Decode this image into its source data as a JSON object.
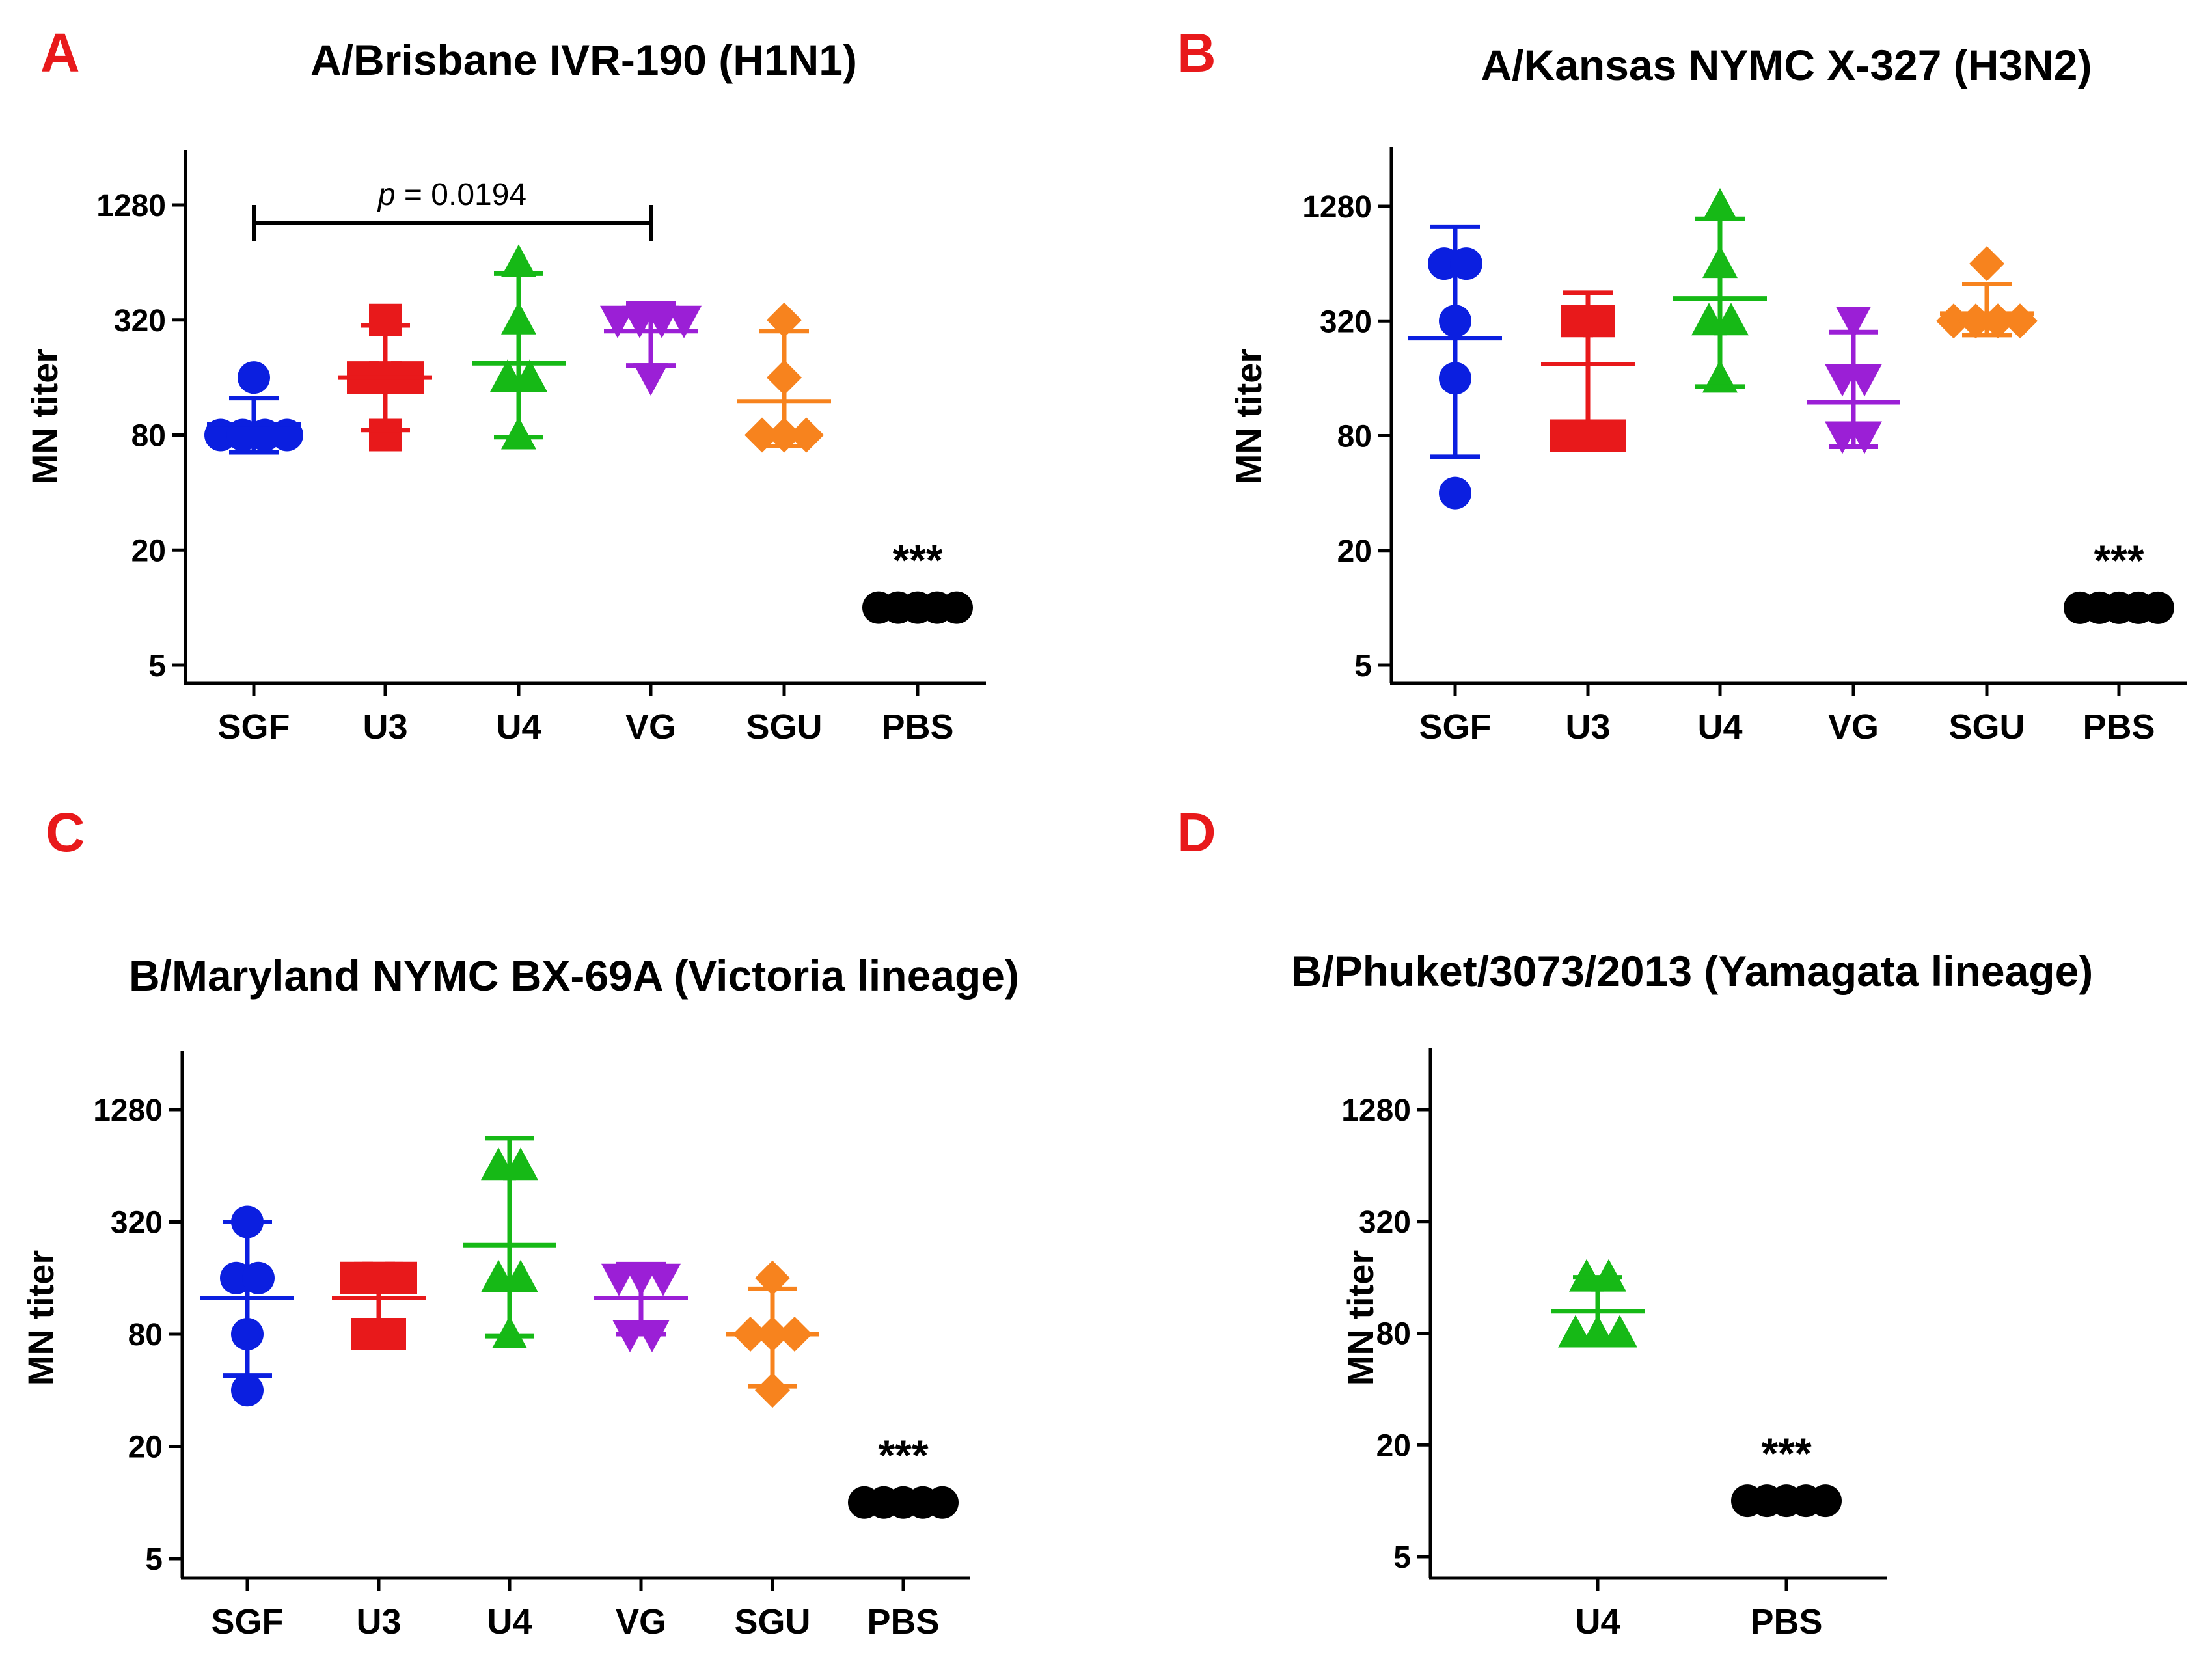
{
  "figure": {
    "name": "MN titer figure"
  },
  "chart_data": [
    {
      "panel": "A",
      "type": "scatter",
      "title": "A/Brisbane IVR-190 (H1N1)",
      "xlabel": "",
      "ylabel": "MN titer",
      "yscale": "log2",
      "ylim": [
        4,
        2560
      ],
      "yticks": [
        5,
        20,
        80,
        320,
        1280
      ],
      "categories": [
        "SGF",
        "U3",
        "U4",
        "VG",
        "SGU",
        "PBS"
      ],
      "series": [
        {
          "name": "SGF",
          "color": "#0b1fe0",
          "marker": "circle",
          "values": [
            160,
            80,
            80,
            80,
            80
          ],
          "mean": 91,
          "sd_low": 65,
          "sd_high": 125
        },
        {
          "name": "U3",
          "color": "#e8191b",
          "marker": "square",
          "values": [
            160,
            160,
            160,
            320,
            80
          ],
          "mean": 160,
          "sd_low": 85,
          "sd_high": 300
        },
        {
          "name": "U4",
          "color": "#16b916",
          "marker": "triangle-up",
          "values": [
            640,
            320,
            160,
            160,
            80
          ],
          "mean": 190,
          "sd_low": 78,
          "sd_high": 560
        },
        {
          "name": "VG",
          "color": "#9b1fd6",
          "marker": "triangle-down",
          "values": [
            320,
            320,
            320,
            320,
            160
          ],
          "mean": 280,
          "sd_low": 185,
          "sd_high": 390
        },
        {
          "name": "SGU",
          "color": "#f7831e",
          "marker": "diamond",
          "values": [
            320,
            160,
            80,
            80,
            80
          ],
          "mean": 120,
          "sd_low": 70,
          "sd_high": 280
        },
        {
          "name": "PBS",
          "color": "#000000",
          "marker": "circle",
          "values": [
            10,
            10,
            10,
            10,
            10
          ],
          "mean": 10
        }
      ],
      "significance": {
        "category": "PBS",
        "label": "***"
      },
      "comparison": {
        "from": "SGF",
        "to": "VG",
        "p_prefix": "p",
        "p_value": " = 0.0194"
      }
    },
    {
      "panel": "B",
      "type": "scatter",
      "title": "A/Kansas NYMC X-327 (H3N2)",
      "xlabel": "",
      "ylabel": "MN titer",
      "yscale": "log2",
      "ylim": [
        4,
        2560
      ],
      "yticks": [
        5,
        20,
        80,
        320,
        1280
      ],
      "categories": [
        "SGF",
        "U3",
        "U4",
        "VG",
        "SGU",
        "PBS"
      ],
      "series": [
        {
          "name": "SGF",
          "color": "#0b1fe0",
          "marker": "circle",
          "values": [
            640,
            640,
            320,
            160,
            40
          ],
          "mean": 260,
          "sd_low": 62,
          "sd_high": 1000
        },
        {
          "name": "U3",
          "color": "#e8191b",
          "marker": "square",
          "values": [
            320,
            320,
            80,
            80,
            80
          ],
          "mean": 190,
          "sd_low": 80,
          "sd_high": 450
        },
        {
          "name": "U4",
          "color": "#16b916",
          "marker": "triangle-up",
          "values": [
            1280,
            640,
            320,
            320,
            160
          ],
          "mean": 420,
          "sd_low": 145,
          "sd_high": 1100
        },
        {
          "name": "VG",
          "color": "#9b1fd6",
          "marker": "triangle-down",
          "values": [
            320,
            160,
            160,
            80,
            80
          ],
          "mean": 120,
          "sd_low": 70,
          "sd_high": 280
        },
        {
          "name": "SGU",
          "color": "#f7831e",
          "marker": "diamond",
          "values": [
            640,
            320,
            320,
            320,
            320
          ],
          "mean": 350,
          "sd_low": 270,
          "sd_high": 500
        },
        {
          "name": "PBS",
          "color": "#000000",
          "marker": "circle",
          "values": [
            10,
            10,
            10,
            10,
            10
          ],
          "mean": 10
        }
      ],
      "significance": {
        "category": "PBS",
        "label": "***"
      }
    },
    {
      "panel": "C",
      "type": "scatter",
      "title": "B/Maryland NYMC BX-69A (Victoria lineage)",
      "xlabel": "",
      "ylabel": "MN titer",
      "yscale": "log2",
      "ylim": [
        4,
        2560
      ],
      "yticks": [
        5,
        20,
        80,
        320,
        1280
      ],
      "categories": [
        "SGF",
        "U3",
        "U4",
        "VG",
        "SGU",
        "PBS"
      ],
      "series": [
        {
          "name": "SGF",
          "color": "#0b1fe0",
          "marker": "circle",
          "values": [
            320,
            160,
            160,
            80,
            40
          ],
          "mean": 125,
          "sd_low": 48,
          "sd_high": 320
        },
        {
          "name": "U3",
          "color": "#e8191b",
          "marker": "square",
          "values": [
            160,
            160,
            160,
            80,
            80
          ],
          "mean": 125,
          "sd_low": 80,
          "sd_high": 190
        },
        {
          "name": "U4",
          "color": "#16b916",
          "marker": "triangle-up",
          "values": [
            640,
            640,
            160,
            160,
            80
          ],
          "mean": 240,
          "sd_low": 78,
          "sd_high": 900
        },
        {
          "name": "VG",
          "color": "#9b1fd6",
          "marker": "triangle-down",
          "values": [
            160,
            160,
            160,
            80,
            80
          ],
          "mean": 125,
          "sd_low": 80,
          "sd_high": 190
        },
        {
          "name": "SGU",
          "color": "#f7831e",
          "marker": "diamond",
          "values": [
            160,
            80,
            80,
            80,
            40
          ],
          "mean": 80,
          "sd_low": 42,
          "sd_high": 140
        },
        {
          "name": "PBS",
          "color": "#000000",
          "marker": "circle",
          "values": [
            10,
            10,
            10,
            10,
            10
          ],
          "mean": 10
        }
      ],
      "significance": {
        "category": "PBS",
        "label": "***"
      }
    },
    {
      "panel": "D",
      "type": "scatter",
      "title": "B/Phuket/3073/2013 (Yamagata lineage)",
      "xlabel": "",
      "ylabel": "MN titer",
      "yscale": "log2",
      "ylim": [
        4,
        2560
      ],
      "yticks": [
        5,
        20,
        80,
        320,
        1280
      ],
      "categories": [
        "U4",
        "PBS"
      ],
      "series": [
        {
          "name": "U4",
          "color": "#16b916",
          "marker": "triangle-up",
          "values": [
            160,
            160,
            80,
            80,
            80
          ],
          "mean": 105,
          "sd_low": 72,
          "sd_high": 160
        },
        {
          "name": "PBS",
          "color": "#000000",
          "marker": "circle",
          "values": [
            10,
            10,
            10,
            10,
            10
          ],
          "mean": 10
        }
      ],
      "significance": {
        "category": "PBS",
        "label": "***"
      }
    }
  ]
}
